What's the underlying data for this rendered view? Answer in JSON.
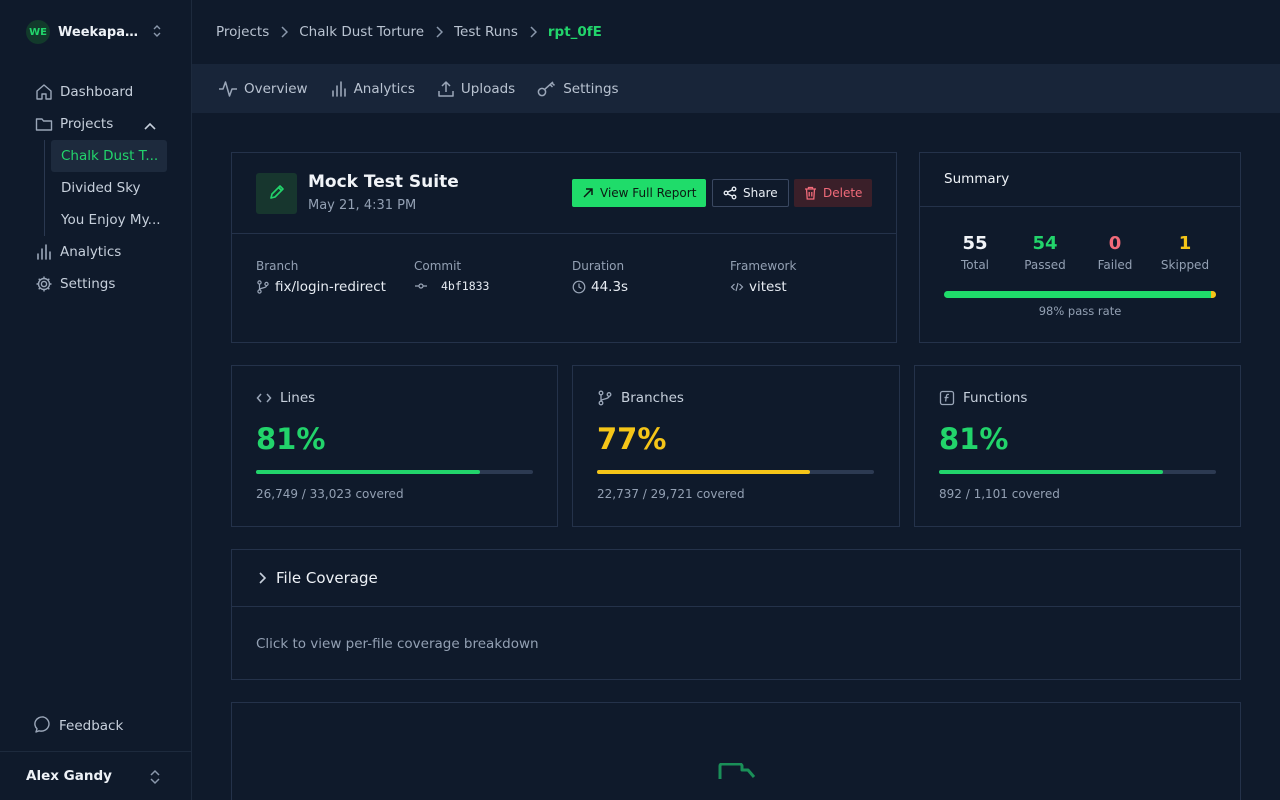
{
  "workspace": {
    "initials": "WE",
    "name": "Weekapaug..."
  },
  "nav": {
    "dashboard": "Dashboard",
    "projects": "Projects",
    "project_items": [
      "Chalk Dust T...",
      "Divided Sky",
      "You Enjoy My..."
    ],
    "analytics": "Analytics",
    "settings": "Settings",
    "feedback": "Feedback"
  },
  "user": {
    "name": "Alex Gandy"
  },
  "breadcrumbs": [
    "Projects",
    "Chalk Dust Torture",
    "Test Runs",
    "rpt_0fE"
  ],
  "tabs": [
    "Overview",
    "Analytics",
    "Uploads",
    "Settings"
  ],
  "run": {
    "title": "Mock Test Suite",
    "date": "May 21, 4:31 PM",
    "view_report_label": "View Full Report",
    "share_label": "Share",
    "delete_label": "Delete",
    "meta": {
      "branch_label": "Branch",
      "branch": "fix/login-redirect",
      "commit_label": "Commit",
      "commit": "4bf1833",
      "duration_label": "Duration",
      "duration": "44.3s",
      "framework_label": "Framework",
      "framework": "vitest"
    }
  },
  "summary": {
    "title": "Summary",
    "total": "55",
    "total_label": "Total",
    "passed": "54",
    "passed_label": "Passed",
    "failed": "0",
    "failed_label": "Failed",
    "skipped": "1",
    "skipped_label": "Skipped",
    "pass_fraction": 0.98,
    "pass_rate_text": "98% pass rate"
  },
  "coverage": {
    "lines": {
      "label": "Lines",
      "pct": "81%",
      "fraction": 0.81,
      "detail": "26,749 / 33,023 covered",
      "color": "#22d46b"
    },
    "branches": {
      "label": "Branches",
      "pct": "77%",
      "fraction": 0.77,
      "detail": "22,737 / 29,721 covered",
      "color": "#f5c518"
    },
    "functions": {
      "label": "Functions",
      "pct": "81%",
      "fraction": 0.81,
      "detail": "892 / 1,101 covered",
      "color": "#22d46b"
    }
  },
  "file_coverage": {
    "title": "File Coverage",
    "hint": "Click to view per-file coverage breakdown"
  },
  "colors": {
    "accent": "#22d46b",
    "warning": "#f5c518",
    "danger": "#f26b7a",
    "background": "#0f1a2b"
  }
}
